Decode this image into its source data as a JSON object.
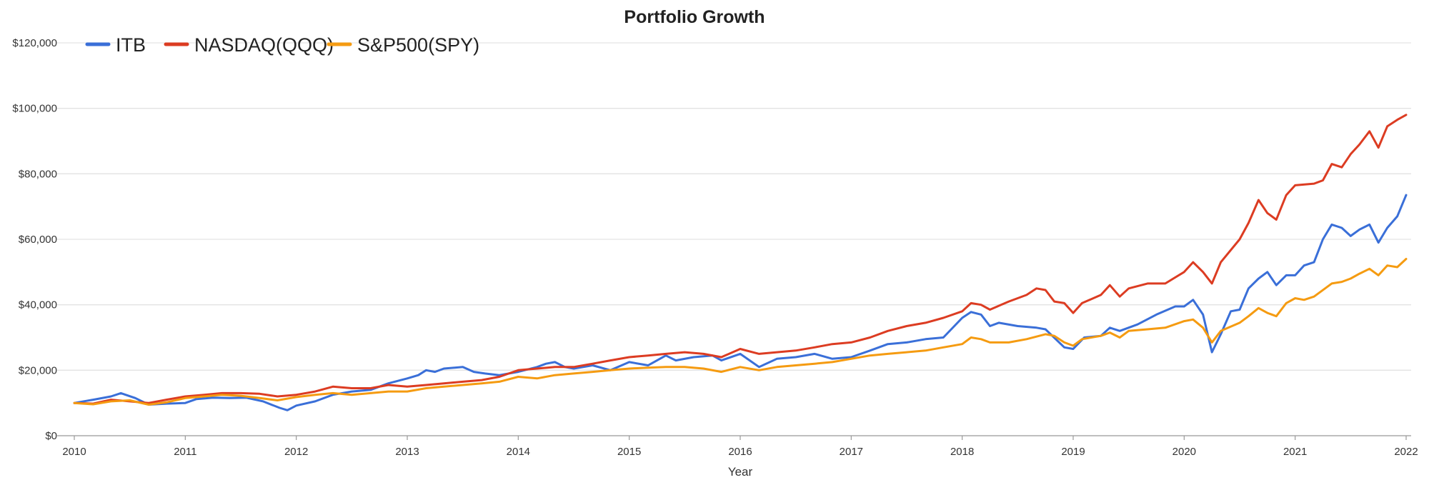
{
  "chart_data": {
    "type": "line",
    "title": "Portfolio Growth",
    "xlabel": "Year",
    "ylabel": "",
    "xlim": [
      2010,
      2022
    ],
    "ylim": [
      0,
      120000
    ],
    "x_ticks": [
      "2010",
      "2011",
      "2012",
      "2013",
      "2014",
      "2015",
      "2016",
      "2017",
      "2018",
      "2019",
      "2020",
      "2021",
      "2022"
    ],
    "y_ticks": [
      {
        "value": 0,
        "label": "$0"
      },
      {
        "value": 20000,
        "label": "$20,000"
      },
      {
        "value": 40000,
        "label": "$40,000"
      },
      {
        "value": 60000,
        "label": "$60,000"
      },
      {
        "value": 80000,
        "label": "$80,000"
      },
      {
        "value": 100000,
        "label": "$100,000"
      },
      {
        "value": 120000,
        "label": "$120,000"
      }
    ],
    "grid": true,
    "legend_position": "top-left",
    "series": [
      {
        "name": "ITB",
        "color": "#3a6fd8",
        "points": [
          [
            2010.0,
            10000
          ],
          [
            2010.17,
            11000
          ],
          [
            2010.33,
            12000
          ],
          [
            2010.42,
            13000
          ],
          [
            2010.55,
            11500
          ],
          [
            2010.67,
            9500
          ],
          [
            2010.83,
            9800
          ],
          [
            2011.0,
            10000
          ],
          [
            2011.1,
            11200
          ],
          [
            2011.25,
            11600
          ],
          [
            2011.4,
            11500
          ],
          [
            2011.55,
            11600
          ],
          [
            2011.7,
            10500
          ],
          [
            2011.85,
            8500
          ],
          [
            2011.92,
            7800
          ],
          [
            2012.0,
            9200
          ],
          [
            2012.17,
            10500
          ],
          [
            2012.33,
            12500
          ],
          [
            2012.5,
            13500
          ],
          [
            2012.67,
            14000
          ],
          [
            2012.83,
            16000
          ],
          [
            2013.0,
            17500
          ],
          [
            2013.1,
            18500
          ],
          [
            2013.17,
            20000
          ],
          [
            2013.25,
            19500
          ],
          [
            2013.33,
            20500
          ],
          [
            2013.5,
            21000
          ],
          [
            2013.6,
            19500
          ],
          [
            2013.7,
            19000
          ],
          [
            2013.83,
            18500
          ],
          [
            2014.0,
            19500
          ],
          [
            2014.17,
            21000
          ],
          [
            2014.25,
            22000
          ],
          [
            2014.33,
            22500
          ],
          [
            2014.42,
            21000
          ],
          [
            2014.5,
            20500
          ],
          [
            2014.67,
            21500
          ],
          [
            2014.83,
            20000
          ],
          [
            2015.0,
            22500
          ],
          [
            2015.17,
            21500
          ],
          [
            2015.33,
            24500
          ],
          [
            2015.42,
            23000
          ],
          [
            2015.58,
            24000
          ],
          [
            2015.75,
            24500
          ],
          [
            2015.83,
            23000
          ],
          [
            2016.0,
            25000
          ],
          [
            2016.17,
            21000
          ],
          [
            2016.33,
            23500
          ],
          [
            2016.5,
            24000
          ],
          [
            2016.67,
            25000
          ],
          [
            2016.83,
            23500
          ],
          [
            2017.0,
            24000
          ],
          [
            2017.17,
            26000
          ],
          [
            2017.33,
            28000
          ],
          [
            2017.5,
            28500
          ],
          [
            2017.67,
            29500
          ],
          [
            2017.83,
            30000
          ],
          [
            2018.0,
            36000
          ],
          [
            2018.08,
            37800
          ],
          [
            2018.17,
            37000
          ],
          [
            2018.25,
            33500
          ],
          [
            2018.33,
            34500
          ],
          [
            2018.5,
            33500
          ],
          [
            2018.67,
            33000
          ],
          [
            2018.75,
            32500
          ],
          [
            2018.92,
            27000
          ],
          [
            2019.0,
            26500
          ],
          [
            2019.1,
            30000
          ],
          [
            2019.25,
            30500
          ],
          [
            2019.33,
            33000
          ],
          [
            2019.42,
            32000
          ],
          [
            2019.58,
            34000
          ],
          [
            2019.75,
            37000
          ],
          [
            2019.92,
            39500
          ],
          [
            2020.0,
            39500
          ],
          [
            2020.08,
            41500
          ],
          [
            2020.17,
            37000
          ],
          [
            2020.25,
            25500
          ],
          [
            2020.33,
            31000
          ],
          [
            2020.42,
            38000
          ],
          [
            2020.5,
            38500
          ],
          [
            2020.58,
            45000
          ],
          [
            2020.67,
            48000
          ],
          [
            2020.75,
            50000
          ],
          [
            2020.83,
            46000
          ],
          [
            2020.92,
            49000
          ],
          [
            2021.0,
            49000
          ],
          [
            2021.08,
            52000
          ],
          [
            2021.17,
            53000
          ],
          [
            2021.25,
            60000
          ],
          [
            2021.33,
            64500
          ],
          [
            2021.42,
            63500
          ],
          [
            2021.5,
            61000
          ],
          [
            2021.58,
            63000
          ],
          [
            2021.67,
            64500
          ],
          [
            2021.75,
            59000
          ],
          [
            2021.83,
            63500
          ],
          [
            2021.92,
            67000
          ],
          [
            2022.0,
            73500
          ]
        ]
      },
      {
        "name": "NASDAQ(QQQ)",
        "color": "#dc3c22",
        "points": [
          [
            2010.0,
            10000
          ],
          [
            2010.17,
            9800
          ],
          [
            2010.33,
            11000
          ],
          [
            2010.5,
            10500
          ],
          [
            2010.67,
            10000
          ],
          [
            2010.83,
            11000
          ],
          [
            2011.0,
            12000
          ],
          [
            2011.17,
            12500
          ],
          [
            2011.33,
            13000
          ],
          [
            2011.5,
            13000
          ],
          [
            2011.67,
            12800
          ],
          [
            2011.83,
            12000
          ],
          [
            2012.0,
            12500
          ],
          [
            2012.17,
            13500
          ],
          [
            2012.33,
            15000
          ],
          [
            2012.5,
            14500
          ],
          [
            2012.67,
            14500
          ],
          [
            2012.83,
            15500
          ],
          [
            2013.0,
            15000
          ],
          [
            2013.17,
            15500
          ],
          [
            2013.33,
            16000
          ],
          [
            2013.5,
            16500
          ],
          [
            2013.67,
            17000
          ],
          [
            2013.83,
            18000
          ],
          [
            2014.0,
            20000
          ],
          [
            2014.17,
            20500
          ],
          [
            2014.33,
            21000
          ],
          [
            2014.5,
            21000
          ],
          [
            2014.67,
            22000
          ],
          [
            2014.83,
            23000
          ],
          [
            2015.0,
            24000
          ],
          [
            2015.17,
            24500
          ],
          [
            2015.33,
            25000
          ],
          [
            2015.5,
            25500
          ],
          [
            2015.67,
            25000
          ],
          [
            2015.83,
            24000
          ],
          [
            2016.0,
            26500
          ],
          [
            2016.17,
            25000
          ],
          [
            2016.33,
            25500
          ],
          [
            2016.5,
            26000
          ],
          [
            2016.67,
            27000
          ],
          [
            2016.83,
            28000
          ],
          [
            2017.0,
            28500
          ],
          [
            2017.17,
            30000
          ],
          [
            2017.33,
            32000
          ],
          [
            2017.5,
            33500
          ],
          [
            2017.67,
            34500
          ],
          [
            2017.83,
            36000
          ],
          [
            2018.0,
            38000
          ],
          [
            2018.08,
            40500
          ],
          [
            2018.17,
            40000
          ],
          [
            2018.25,
            38500
          ],
          [
            2018.42,
            41000
          ],
          [
            2018.58,
            43000
          ],
          [
            2018.67,
            45000
          ],
          [
            2018.75,
            44500
          ],
          [
            2018.83,
            41000
          ],
          [
            2018.92,
            40500
          ],
          [
            2019.0,
            37500
          ],
          [
            2019.08,
            40500
          ],
          [
            2019.25,
            43000
          ],
          [
            2019.33,
            46000
          ],
          [
            2019.42,
            42500
          ],
          [
            2019.5,
            45000
          ],
          [
            2019.67,
            46500
          ],
          [
            2019.83,
            46500
          ],
          [
            2020.0,
            50000
          ],
          [
            2020.08,
            53000
          ],
          [
            2020.17,
            50000
          ],
          [
            2020.25,
            46500
          ],
          [
            2020.33,
            53000
          ],
          [
            2020.5,
            60000
          ],
          [
            2020.58,
            65000
          ],
          [
            2020.67,
            72000
          ],
          [
            2020.75,
            68000
          ],
          [
            2020.83,
            66000
          ],
          [
            2020.92,
            73500
          ],
          [
            2021.0,
            76500
          ],
          [
            2021.17,
            77000
          ],
          [
            2021.25,
            78000
          ],
          [
            2021.33,
            83000
          ],
          [
            2021.42,
            82000
          ],
          [
            2021.5,
            86000
          ],
          [
            2021.58,
            89000
          ],
          [
            2021.67,
            93000
          ],
          [
            2021.75,
            88000
          ],
          [
            2021.83,
            94500
          ],
          [
            2021.92,
            96500
          ],
          [
            2022.0,
            98000
          ]
        ]
      },
      {
        "name": "S&P500(SPY)",
        "color": "#f59b11",
        "points": [
          [
            2010.0,
            10000
          ],
          [
            2010.17,
            9600
          ],
          [
            2010.33,
            10500
          ],
          [
            2010.5,
            10800
          ],
          [
            2010.67,
            9500
          ],
          [
            2010.83,
            10200
          ],
          [
            2011.0,
            11500
          ],
          [
            2011.17,
            12000
          ],
          [
            2011.33,
            12500
          ],
          [
            2011.5,
            12200
          ],
          [
            2011.67,
            11500
          ],
          [
            2011.83,
            10800
          ],
          [
            2012.0,
            11800
          ],
          [
            2012.17,
            12500
          ],
          [
            2012.33,
            13000
          ],
          [
            2012.5,
            12500
          ],
          [
            2012.67,
            13000
          ],
          [
            2012.83,
            13500
          ],
          [
            2013.0,
            13500
          ],
          [
            2013.17,
            14500
          ],
          [
            2013.33,
            15000
          ],
          [
            2013.5,
            15500
          ],
          [
            2013.67,
            16000
          ],
          [
            2013.83,
            16500
          ],
          [
            2014.0,
            18000
          ],
          [
            2014.17,
            17500
          ],
          [
            2014.33,
            18500
          ],
          [
            2014.5,
            19000
          ],
          [
            2014.67,
            19500
          ],
          [
            2014.83,
            20000
          ],
          [
            2015.0,
            20500
          ],
          [
            2015.17,
            20800
          ],
          [
            2015.33,
            21000
          ],
          [
            2015.5,
            21000
          ],
          [
            2015.67,
            20500
          ],
          [
            2015.83,
            19500
          ],
          [
            2016.0,
            21000
          ],
          [
            2016.17,
            20000
          ],
          [
            2016.33,
            21000
          ],
          [
            2016.5,
            21500
          ],
          [
            2016.67,
            22000
          ],
          [
            2016.83,
            22500
          ],
          [
            2017.0,
            23500
          ],
          [
            2017.17,
            24500
          ],
          [
            2017.33,
            25000
          ],
          [
            2017.5,
            25500
          ],
          [
            2017.67,
            26000
          ],
          [
            2017.83,
            27000
          ],
          [
            2018.0,
            28000
          ],
          [
            2018.08,
            30000
          ],
          [
            2018.17,
            29500
          ],
          [
            2018.25,
            28500
          ],
          [
            2018.42,
            28500
          ],
          [
            2018.58,
            29500
          ],
          [
            2018.75,
            31000
          ],
          [
            2018.83,
            30500
          ],
          [
            2018.92,
            28500
          ],
          [
            2019.0,
            27500
          ],
          [
            2019.08,
            29500
          ],
          [
            2019.25,
            30500
          ],
          [
            2019.33,
            31500
          ],
          [
            2019.42,
            30000
          ],
          [
            2019.5,
            32000
          ],
          [
            2019.67,
            32500
          ],
          [
            2019.83,
            33000
          ],
          [
            2020.0,
            35000
          ],
          [
            2020.08,
            35500
          ],
          [
            2020.17,
            33000
          ],
          [
            2020.25,
            28500
          ],
          [
            2020.33,
            32000
          ],
          [
            2020.5,
            34500
          ],
          [
            2020.58,
            36500
          ],
          [
            2020.67,
            39000
          ],
          [
            2020.75,
            37500
          ],
          [
            2020.83,
            36500
          ],
          [
            2020.92,
            40500
          ],
          [
            2021.0,
            42000
          ],
          [
            2021.08,
            41500
          ],
          [
            2021.17,
            42500
          ],
          [
            2021.33,
            46500
          ],
          [
            2021.42,
            47000
          ],
          [
            2021.5,
            48000
          ],
          [
            2021.58,
            49500
          ],
          [
            2021.67,
            51000
          ],
          [
            2021.75,
            49000
          ],
          [
            2021.83,
            52000
          ],
          [
            2021.92,
            51500
          ],
          [
            2022.0,
            54000
          ]
        ]
      }
    ]
  }
}
